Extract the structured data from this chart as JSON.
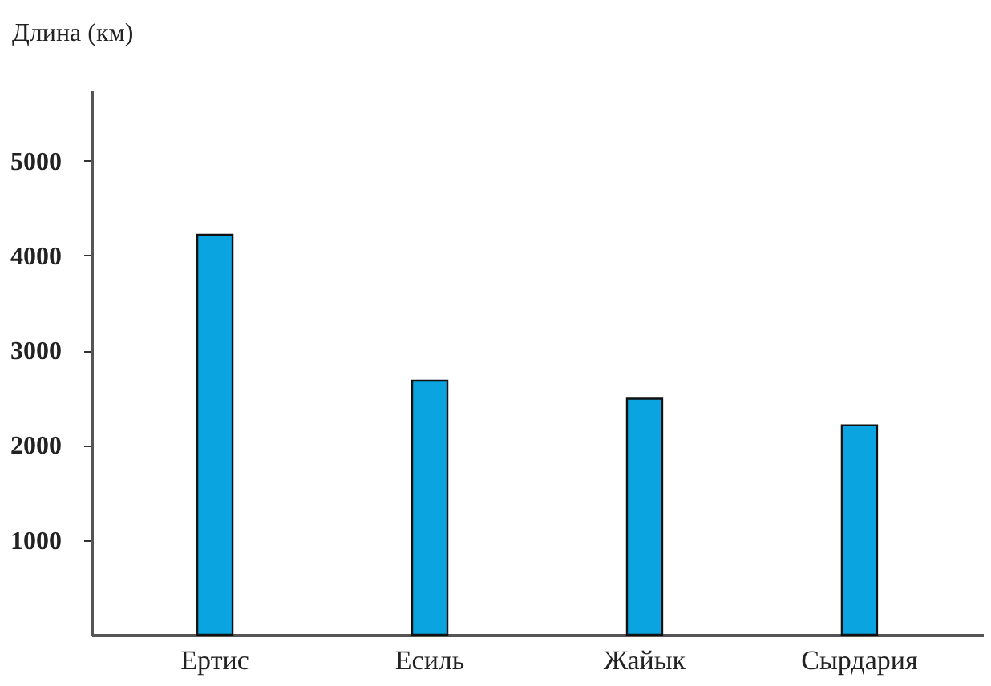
{
  "chart_data": {
    "type": "bar",
    "ylabel": "Длина (км)",
    "categories": [
      "Ертис",
      "Есиль",
      "Жайык",
      "Сырдария"
    ],
    "values": [
      4220,
      2680,
      2490,
      2210
    ],
    "color": "#0aa5e0",
    "ylim": [
      0,
      5750
    ],
    "yticks": [
      1000,
      2000,
      3000,
      4000,
      5000
    ],
    "grid": false
  }
}
